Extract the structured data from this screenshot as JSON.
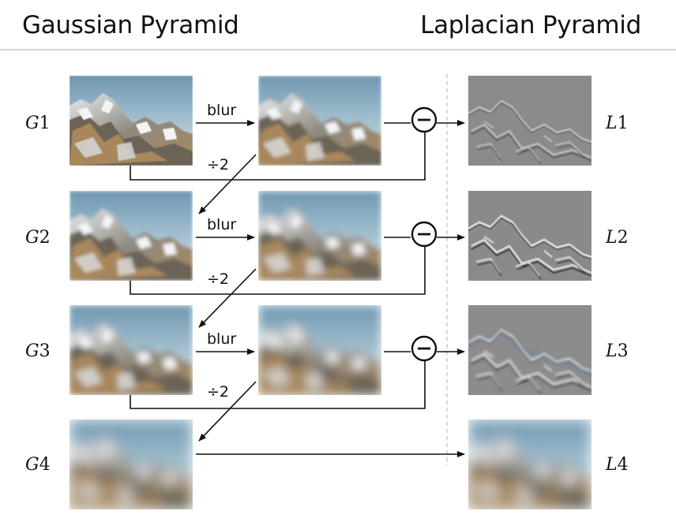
{
  "header": {
    "left_title": "Gaussian Pyramid",
    "right_title": "Laplacian Pyramid"
  },
  "gaussian_labels": [
    "G",
    "G",
    "G",
    "G"
  ],
  "gaussian_numbers": [
    "1",
    "2",
    "3",
    "4"
  ],
  "laplacian_labels": [
    "L",
    "L",
    "L",
    "L"
  ],
  "laplacian_numbers": [
    "1",
    "2",
    "3",
    "4"
  ],
  "ops": {
    "blur": "blur",
    "downsample": "÷2"
  },
  "icons": {
    "subtract": "minus-circle-icon"
  },
  "colors": {
    "rule": "#c9d6e6",
    "sky": "#7fa6bf",
    "laplacian_gray": "#8a8a8a"
  }
}
